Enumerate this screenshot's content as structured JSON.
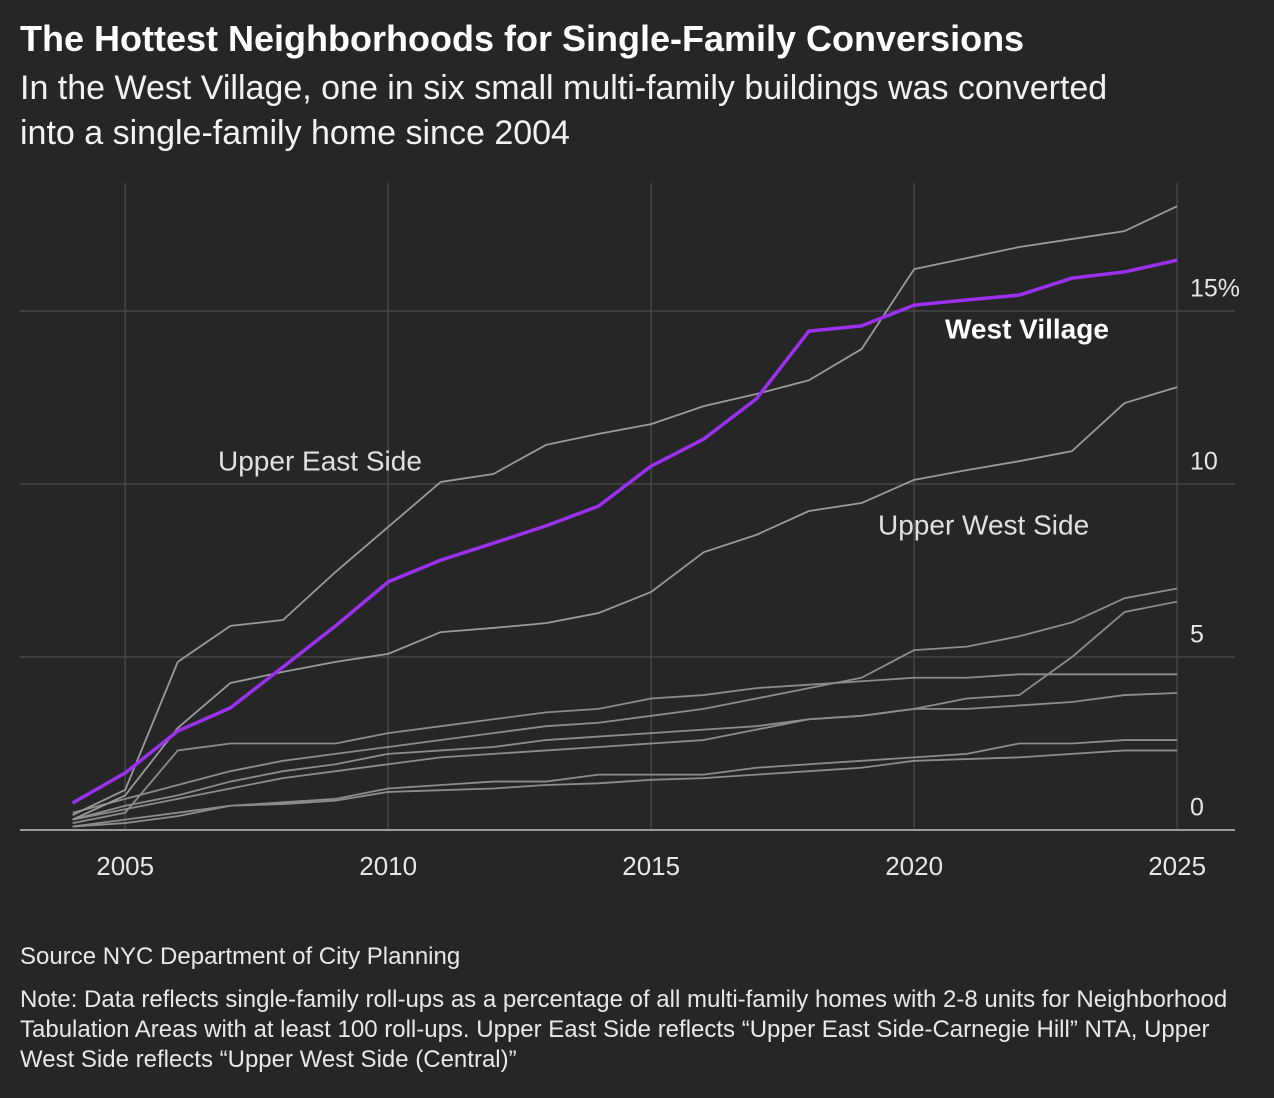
{
  "chart_data": {
    "type": "line",
    "title": "The Hottest Neighborhoods for Single-Family Conversions",
    "subtitle": "In the West Village, one in six small multi-family buildings was converted into a single-family home since 2004",
    "source": "Source NYC Department of City Planning",
    "note": "Note: Data reflects single-family roll-ups as a percentage of all multi-family homes with 2-8 units for Neighborhood Tabulation Areas with at least 100 roll-ups. Upper East Side reflects “Upper East Side-Carnegie Hill” NTA, Upper West Side reflects “Upper West Side (Central)”",
    "x": [
      2004,
      2005,
      2006,
      2007,
      2008,
      2009,
      2010,
      2011,
      2012,
      2013,
      2014,
      2015,
      2016,
      2017,
      2018,
      2019,
      2020,
      2021,
      2022,
      2023,
      2024,
      2025
    ],
    "xlim": [
      2003,
      2026.1
    ],
    "xticks": [
      2005,
      2010,
      2015,
      2020,
      2025
    ],
    "ylim": [
      0,
      18.7
    ],
    "yticks": [
      0,
      5,
      10,
      {
        "value": 15,
        "label": "15%"
      }
    ],
    "grid": true,
    "series": [
      {
        "color": "#8c8c8c",
        "values": [
          0.5,
          0.9,
          1.3,
          1.7,
          2.0,
          2.2,
          2.4,
          2.6,
          2.8,
          3.0,
          3.1,
          3.3,
          3.5,
          3.8,
          4.1,
          4.4,
          5.2,
          5.3,
          5.6,
          6.0,
          6.7,
          6.98
        ]
      },
      {
        "color": "#8c8c8c",
        "values": [
          0.3,
          0.6,
          0.9,
          1.2,
          1.5,
          1.7,
          1.9,
          2.1,
          2.2,
          2.3,
          2.4,
          2.5,
          2.6,
          2.9,
          3.2,
          3.3,
          3.5,
          3.8,
          3.9,
          5.0,
          6.3,
          6.6
        ]
      },
      {
        "color": "#8c8c8c",
        "values": [
          0.2,
          0.5,
          2.3,
          2.5,
          2.5,
          2.5,
          2.8,
          3.0,
          3.2,
          3.4,
          3.5,
          3.8,
          3.9,
          4.1,
          4.2,
          4.3,
          4.4,
          4.4,
          4.5,
          4.5,
          4.5,
          4.5
        ]
      },
      {
        "color": "#8c8c8c",
        "values": [
          0.3,
          0.7,
          1.0,
          1.4,
          1.7,
          1.9,
          2.2,
          2.3,
          2.4,
          2.6,
          2.7,
          2.8,
          2.9,
          3.0,
          3.2,
          3.3,
          3.5,
          3.5,
          3.6,
          3.7,
          3.9,
          3.96
        ]
      },
      {
        "color": "#8c8c8c",
        "values": [
          0.1,
          0.2,
          0.4,
          0.7,
          0.8,
          0.9,
          1.2,
          1.3,
          1.4,
          1.4,
          1.6,
          1.6,
          1.6,
          1.8,
          1.9,
          2.0,
          2.1,
          2.2,
          2.5,
          2.5,
          2.6,
          2.6
        ]
      },
      {
        "color": "#8c8c8c",
        "values": [
          0.1,
          0.3,
          0.5,
          0.7,
          0.75,
          0.85,
          1.1,
          1.15,
          1.2,
          1.3,
          1.35,
          1.45,
          1.5,
          1.6,
          1.7,
          1.8,
          2.0,
          2.05,
          2.1,
          2.2,
          2.3,
          2.3
        ]
      },
      {
        "name": "Upper West Side",
        "color": "#9a9a9a",
        "values": [
          0.3,
          1.0,
          2.95,
          4.25,
          4.57,
          4.86,
          5.09,
          5.72,
          5.84,
          5.98,
          6.27,
          6.88,
          8.03,
          8.53,
          9.22,
          9.45,
          10.12,
          10.4,
          10.66,
          10.95,
          12.34,
          12.8
        ]
      },
      {
        "name": "Upper East Side",
        "color": "#9a9a9a",
        "values": [
          0.43,
          1.16,
          4.86,
          5.9,
          6.07,
          7.46,
          8.76,
          10.06,
          10.29,
          11.13,
          11.45,
          11.73,
          12.25,
          12.6,
          13.0,
          13.9,
          16.21,
          16.53,
          16.85,
          17.08,
          17.31,
          18.03
        ]
      },
      {
        "name": "West Village",
        "color": "#9b30f0",
        "values": [
          0.78,
          1.65,
          2.86,
          3.53,
          4.71,
          5.9,
          7.17,
          7.8,
          8.29,
          8.79,
          9.36,
          10.52,
          11.3,
          12.46,
          14.42,
          14.57,
          15.17,
          15.32,
          15.46,
          15.95,
          16.13,
          16.47
        ]
      }
    ]
  }
}
